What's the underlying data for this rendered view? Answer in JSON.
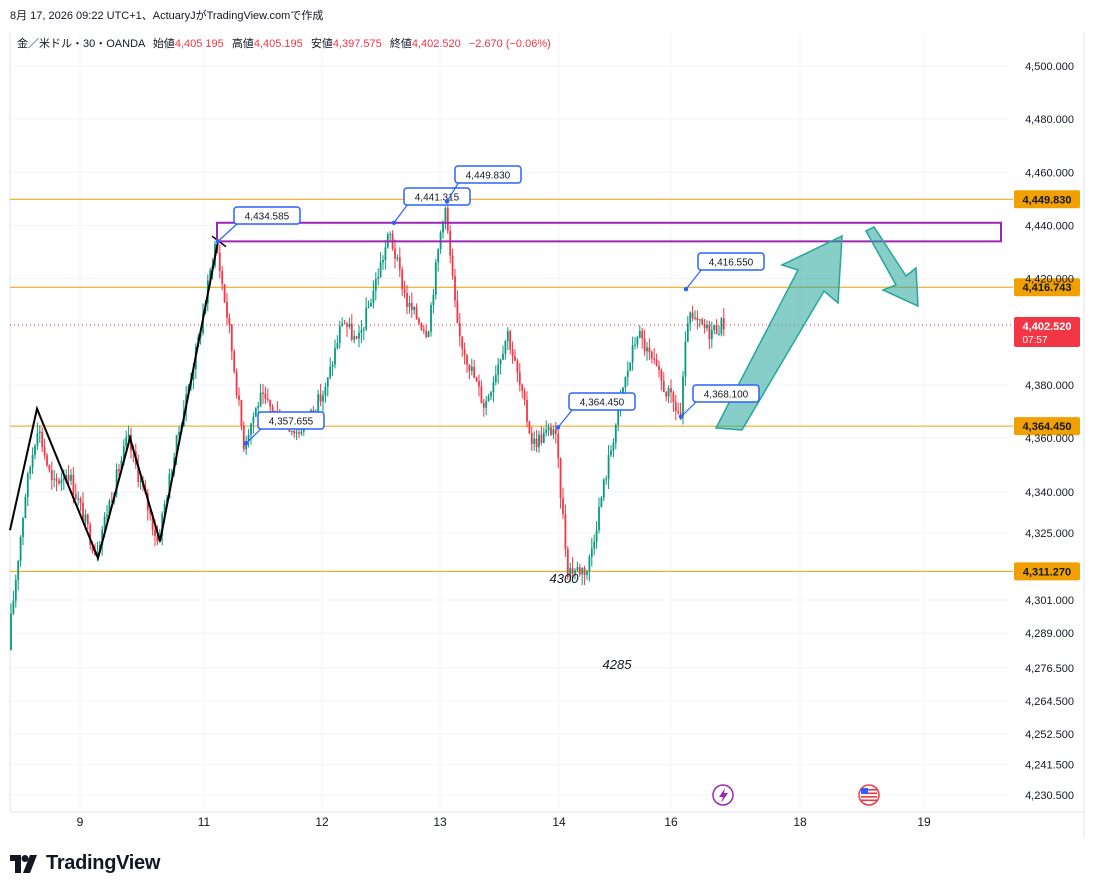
{
  "caption": "8月 17, 2026 09:22 UTC+1、ActuaryJがTradingView.comで作成",
  "legend": {
    "symbol": "金／米ドル・30・OANDA",
    "open_label": "始値",
    "open": "4,405.195",
    "high_label": "高値",
    "high": "4,405.195",
    "low_label": "安値",
    "low": "4,397.575",
    "close_label": "終値",
    "close": "4,402.520",
    "change": "−2.670 (−0.06%)"
  },
  "branding": "TradingView",
  "colors": {
    "up": "#089981",
    "down": "#f23645",
    "level": "#f0a000",
    "box": "#9c27b0",
    "arrow": "#26a69a",
    "callout": "#2962ff"
  },
  "chart_data": {
    "type": "candlestick",
    "instrument": "金／米ドル・30・OANDA",
    "ylim": [
      4226,
      4510
    ],
    "y_ticks": [
      "4,500.000",
      "4,480.000",
      "4,460.000",
      "4,440.000",
      "4,420.000",
      "4,380.000",
      "4,360.000",
      "4,340.000",
      "4,325.000",
      "4,301.000",
      "4,289.000",
      "4,276.500",
      "4,264.500",
      "4,252.500",
      "4,241.500",
      "4,230.500"
    ],
    "x_ticks": [
      "9",
      "11",
      "12",
      "13",
      "14",
      "16",
      "18",
      "19"
    ],
    "horizontal_levels": [
      "4,449.830",
      "4,416.743",
      "4,364.450",
      "4,311.270"
    ],
    "current_price": {
      "value": "4,402.520",
      "countdown": "07:57"
    },
    "callouts": [
      "4,434.585",
      "4,441.315",
      "4,449.830",
      "4,357.655",
      "4,364.450",
      "4,416.550",
      "4,368.100"
    ],
    "annotations": [
      "4300",
      "4285"
    ],
    "resistance_zone": [
      4434,
      4441
    ]
  }
}
